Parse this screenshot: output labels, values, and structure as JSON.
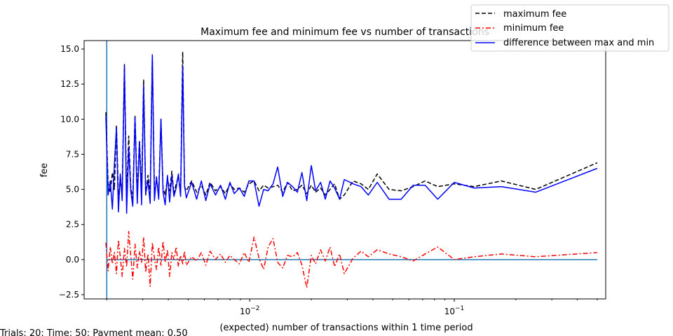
{
  "chart_data": {
    "type": "line",
    "title": "Maximum fee and minimum fee vs number of transactions",
    "xlabel": "(expected) number of transactions within 1 time period",
    "ylabel": "fee",
    "x_scale": "log",
    "xlim": [
      0.00155,
      0.55
    ],
    "ylim": [
      -2.8,
      15.6
    ],
    "x_ticks": [
      {
        "value": 0.01,
        "label": "10^-2"
      },
      {
        "value": 0.1,
        "label": "10^-1"
      }
    ],
    "y_ticks": [
      {
        "value": -2.5,
        "label": "−2.5"
      },
      {
        "value": 0.0,
        "label": "0.0"
      },
      {
        "value": 2.5,
        "label": "2.5"
      },
      {
        "value": 5.0,
        "label": "5.0"
      },
      {
        "value": 7.5,
        "label": "7.5"
      },
      {
        "value": 10.0,
        "label": "10.0"
      },
      {
        "value": 12.5,
        "label": "12.5"
      },
      {
        "value": 15.0,
        "label": "15.0"
      }
    ],
    "grid": false,
    "legend_position": "top-right",
    "vertical_line_x": 0.002,
    "horizontal_line_y": 0,
    "series": [
      {
        "name": "maximum fee",
        "color": "#000000",
        "dash": "dashed",
        "x": [
          0.00198,
          0.00203,
          0.00208,
          0.00213,
          0.00218,
          0.00223,
          0.00228,
          0.00233,
          0.00238,
          0.00244,
          0.0025,
          0.00256,
          0.00262,
          0.00268,
          0.00275,
          0.00282,
          0.00289,
          0.00296,
          0.00303,
          0.0031,
          0.00318,
          0.00326,
          0.00334,
          0.00342,
          0.0035,
          0.00359,
          0.00368,
          0.00377,
          0.00386,
          0.00396,
          0.00406,
          0.00416,
          0.00426,
          0.00437,
          0.00448,
          0.00459,
          0.0047,
          0.0048,
          0.0049,
          0.0052,
          0.0055,
          0.0058,
          0.0061,
          0.0064,
          0.0068,
          0.0072,
          0.0076,
          0.008,
          0.0084,
          0.0089,
          0.0094,
          0.0099,
          0.0105,
          0.0111,
          0.0117,
          0.0123,
          0.013,
          0.0137,
          0.0145,
          0.0153,
          0.0162,
          0.0171,
          0.018,
          0.019,
          0.02,
          0.021,
          0.0222,
          0.0234,
          0.0247,
          0.026,
          0.0275,
          0.029,
          0.032,
          0.035,
          0.038,
          0.042,
          0.048,
          0.055,
          0.063,
          0.072,
          0.083,
          0.1,
          0.125,
          0.17,
          0.25,
          0.5
        ],
        "y": [
          10.5,
          5.4,
          4.8,
          6.2,
          5.0,
          9.6,
          4.6,
          5.5,
          4.9,
          13.9,
          4.4,
          8.8,
          5.2,
          4.3,
          10.3,
          4.7,
          8.5,
          5.0,
          12.8,
          4.6,
          6.0,
          4.7,
          14.5,
          4.8,
          5.6,
          4.9,
          10.0,
          5.1,
          4.6,
          5.8,
          4.9,
          6.3,
          4.7,
          5.4,
          5.9,
          4.8,
          14.8,
          5.2,
          4.9,
          5.6,
          4.8,
          5.3,
          4.6,
          5.5,
          4.9,
          5.2,
          4.7,
          5.4,
          5.0,
          5.1,
          4.8,
          5.4,
          5.6,
          4.9,
          5.3,
          5.1,
          5.2,
          5.3,
          4.8,
          5.5,
          4.9,
          5.0,
          5.3,
          4.7,
          5.3,
          4.8,
          5.1,
          4.6,
          5.0,
          5.4,
          4.3,
          4.6,
          5.6,
          5.4,
          5.0,
          6.1,
          5.0,
          4.9,
          5.2,
          5.6,
          5.2,
          5.4,
          5.2,
          5.6,
          5.0,
          6.9
        ]
      },
      {
        "name": "minimum fee",
        "color": "#ff0000",
        "dash": "dashdot",
        "x": [
          0.00198,
          0.00203,
          0.00208,
          0.00213,
          0.00218,
          0.00223,
          0.00228,
          0.00233,
          0.00238,
          0.00244,
          0.0025,
          0.00256,
          0.00262,
          0.00268,
          0.00275,
          0.00282,
          0.00289,
          0.00296,
          0.00303,
          0.0031,
          0.00318,
          0.00326,
          0.00334,
          0.00342,
          0.0035,
          0.00359,
          0.00368,
          0.00377,
          0.00386,
          0.00396,
          0.00406,
          0.00416,
          0.00426,
          0.00437,
          0.00448,
          0.00459,
          0.0047,
          0.0048,
          0.0049,
          0.0052,
          0.0055,
          0.0058,
          0.0061,
          0.0064,
          0.0068,
          0.0072,
          0.0076,
          0.008,
          0.0084,
          0.0089,
          0.0094,
          0.0099,
          0.0105,
          0.0111,
          0.0117,
          0.0123,
          0.013,
          0.0137,
          0.0145,
          0.0153,
          0.0162,
          0.0171,
          0.018,
          0.019,
          0.02,
          0.021,
          0.0222,
          0.0234,
          0.0247,
          0.026,
          0.0275,
          0.029,
          0.032,
          0.035,
          0.038,
          0.042,
          0.048,
          0.055,
          0.063,
          0.072,
          0.083,
          0.1,
          0.125,
          0.17,
          0.25,
          0.5
        ],
        "y": [
          1.2,
          -0.8,
          0.9,
          -0.3,
          0.5,
          -1.0,
          1.4,
          0.2,
          -1.2,
          0.8,
          -0.5,
          2.0,
          0.3,
          -1.4,
          1.1,
          -0.6,
          0.6,
          -0.2,
          1.6,
          -0.9,
          0.4,
          -1.9,
          1.2,
          0.1,
          -0.7,
          0.9,
          -0.4,
          1.3,
          -0.2,
          0.7,
          -1.2,
          0.5,
          0.0,
          0.9,
          -0.5,
          0.3,
          -0.3,
          0.6,
          -0.4,
          0.2,
          -0.1,
          0.5,
          -0.4,
          0.6,
          0.0,
          0.4,
          -0.2,
          0.3,
          0.0,
          -0.3,
          0.5,
          -0.2,
          1.6,
          0.1,
          -0.7,
          0.9,
          1.5,
          -0.2,
          -0.6,
          0.3,
          0.2,
          0.5,
          -0.4,
          -2.0,
          0.3,
          -0.3,
          0.7,
          -0.1,
          0.9,
          -0.5,
          0.4,
          -1.0,
          0.1,
          0.6,
          0.2,
          0.7,
          0.4,
          0.2,
          -0.1,
          0.4,
          0.9,
          0.0,
          0.2,
          0.4,
          0.2,
          0.5
        ]
      },
      {
        "name": "difference between max and min",
        "color": "#0000ff",
        "dash": "solid",
        "x": [
          0.00198,
          0.00203,
          0.00208,
          0.00213,
          0.00218,
          0.00223,
          0.00228,
          0.00233,
          0.00238,
          0.00244,
          0.0025,
          0.00256,
          0.00262,
          0.00268,
          0.00275,
          0.00282,
          0.00289,
          0.00296,
          0.00303,
          0.0031,
          0.00318,
          0.00326,
          0.00334,
          0.00342,
          0.0035,
          0.00359,
          0.00368,
          0.00377,
          0.00386,
          0.00396,
          0.00406,
          0.00416,
          0.00426,
          0.00437,
          0.00448,
          0.00459,
          0.0047,
          0.0048,
          0.0049,
          0.0052,
          0.0055,
          0.0058,
          0.0061,
          0.0064,
          0.0068,
          0.0072,
          0.0076,
          0.008,
          0.0084,
          0.0089,
          0.0094,
          0.0099,
          0.0105,
          0.0111,
          0.0117,
          0.0123,
          0.013,
          0.0137,
          0.0145,
          0.0153,
          0.0162,
          0.0171,
          0.018,
          0.019,
          0.02,
          0.021,
          0.0222,
          0.0234,
          0.0247,
          0.026,
          0.0275,
          0.029,
          0.032,
          0.035,
          0.038,
          0.042,
          0.048,
          0.055,
          0.063,
          0.072,
          0.083,
          0.1,
          0.125,
          0.17,
          0.25,
          0.5
        ],
        "y": [
          10.2,
          4.6,
          5.6,
          3.6,
          6.8,
          9.4,
          3.4,
          6.1,
          4.2,
          13.8,
          3.3,
          8.0,
          4.9,
          3.8,
          10.1,
          4.0,
          8.4,
          3.9,
          12.4,
          4.7,
          5.6,
          4.0,
          14.6,
          4.2,
          5.9,
          4.3,
          10.0,
          4.8,
          3.9,
          6.0,
          4.1,
          6.0,
          4.5,
          5.1,
          6.1,
          4.5,
          13.8,
          5.3,
          4.4,
          5.5,
          4.3,
          5.6,
          4.2,
          5.4,
          4.6,
          5.3,
          4.3,
          5.5,
          4.7,
          5.1,
          4.5,
          5.6,
          5.6,
          3.8,
          5.0,
          4.9,
          5.4,
          6.6,
          4.5,
          5.5,
          5.2,
          4.8,
          6.2,
          4.2,
          6.7,
          4.9,
          5.5,
          4.3,
          5.6,
          5.1,
          4.3,
          5.7,
          5.4,
          5.2,
          4.6,
          5.5,
          4.3,
          4.3,
          5.3,
          5.3,
          4.3,
          5.5,
          5.1,
          5.2,
          4.8,
          6.5
        ]
      }
    ],
    "footer_text": "Trials: 20: Time: 50: Payment mean: 0.50"
  }
}
